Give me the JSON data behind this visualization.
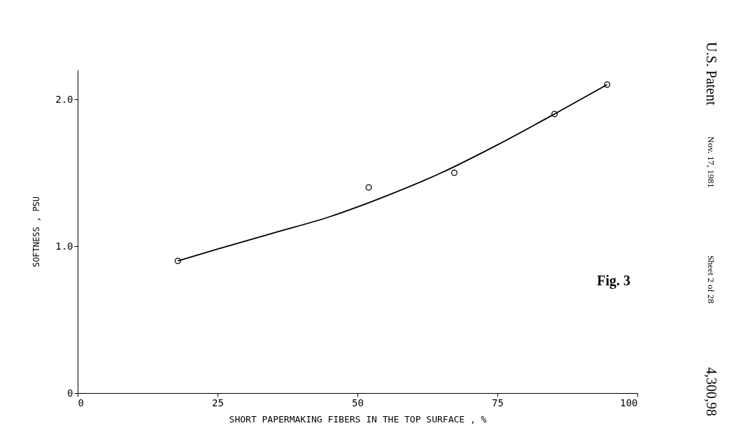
{
  "chart_data": {
    "type": "scatter",
    "xlabel": "SHORT PAPERMAKING FIBERS IN THE TOP SURFACE , %",
    "ylabel": "SOFTNESS , PSU",
    "x": [
      17.9,
      52,
      67.3,
      85.2,
      94.6
    ],
    "series": [
      {
        "color": "#000000",
        "marker": "circle",
        "values": [
          0.9,
          1.4,
          1.5,
          1.9,
          2.1
        ]
      },
      {
        "type": "line",
        "color": "#000000",
        "line_style": "solid",
        "x": [
          17.9,
          25,
          35,
          45,
          55,
          65,
          75,
          85.2,
          94.6
        ],
        "values": [
          0.9,
          0.98,
          1.09,
          1.2,
          1.34,
          1.5,
          1.69,
          1.9,
          2.1
        ]
      }
    ],
    "xlim": [
      0,
      100
    ],
    "xticks": [
      0,
      25,
      50,
      75,
      100
    ],
    "ylim": [
      0,
      2.2
    ],
    "yticks": [
      0,
      {
        "value": 1,
        "label": "1.0"
      },
      {
        "value": 2,
        "label": "2.0"
      }
    ],
    "grid": false,
    "annotations": [
      "Fig. 3",
      "U.S. Patent",
      "Nov. 17, 1981",
      "Sheet 2 of 28",
      "4,300,98"
    ]
  }
}
